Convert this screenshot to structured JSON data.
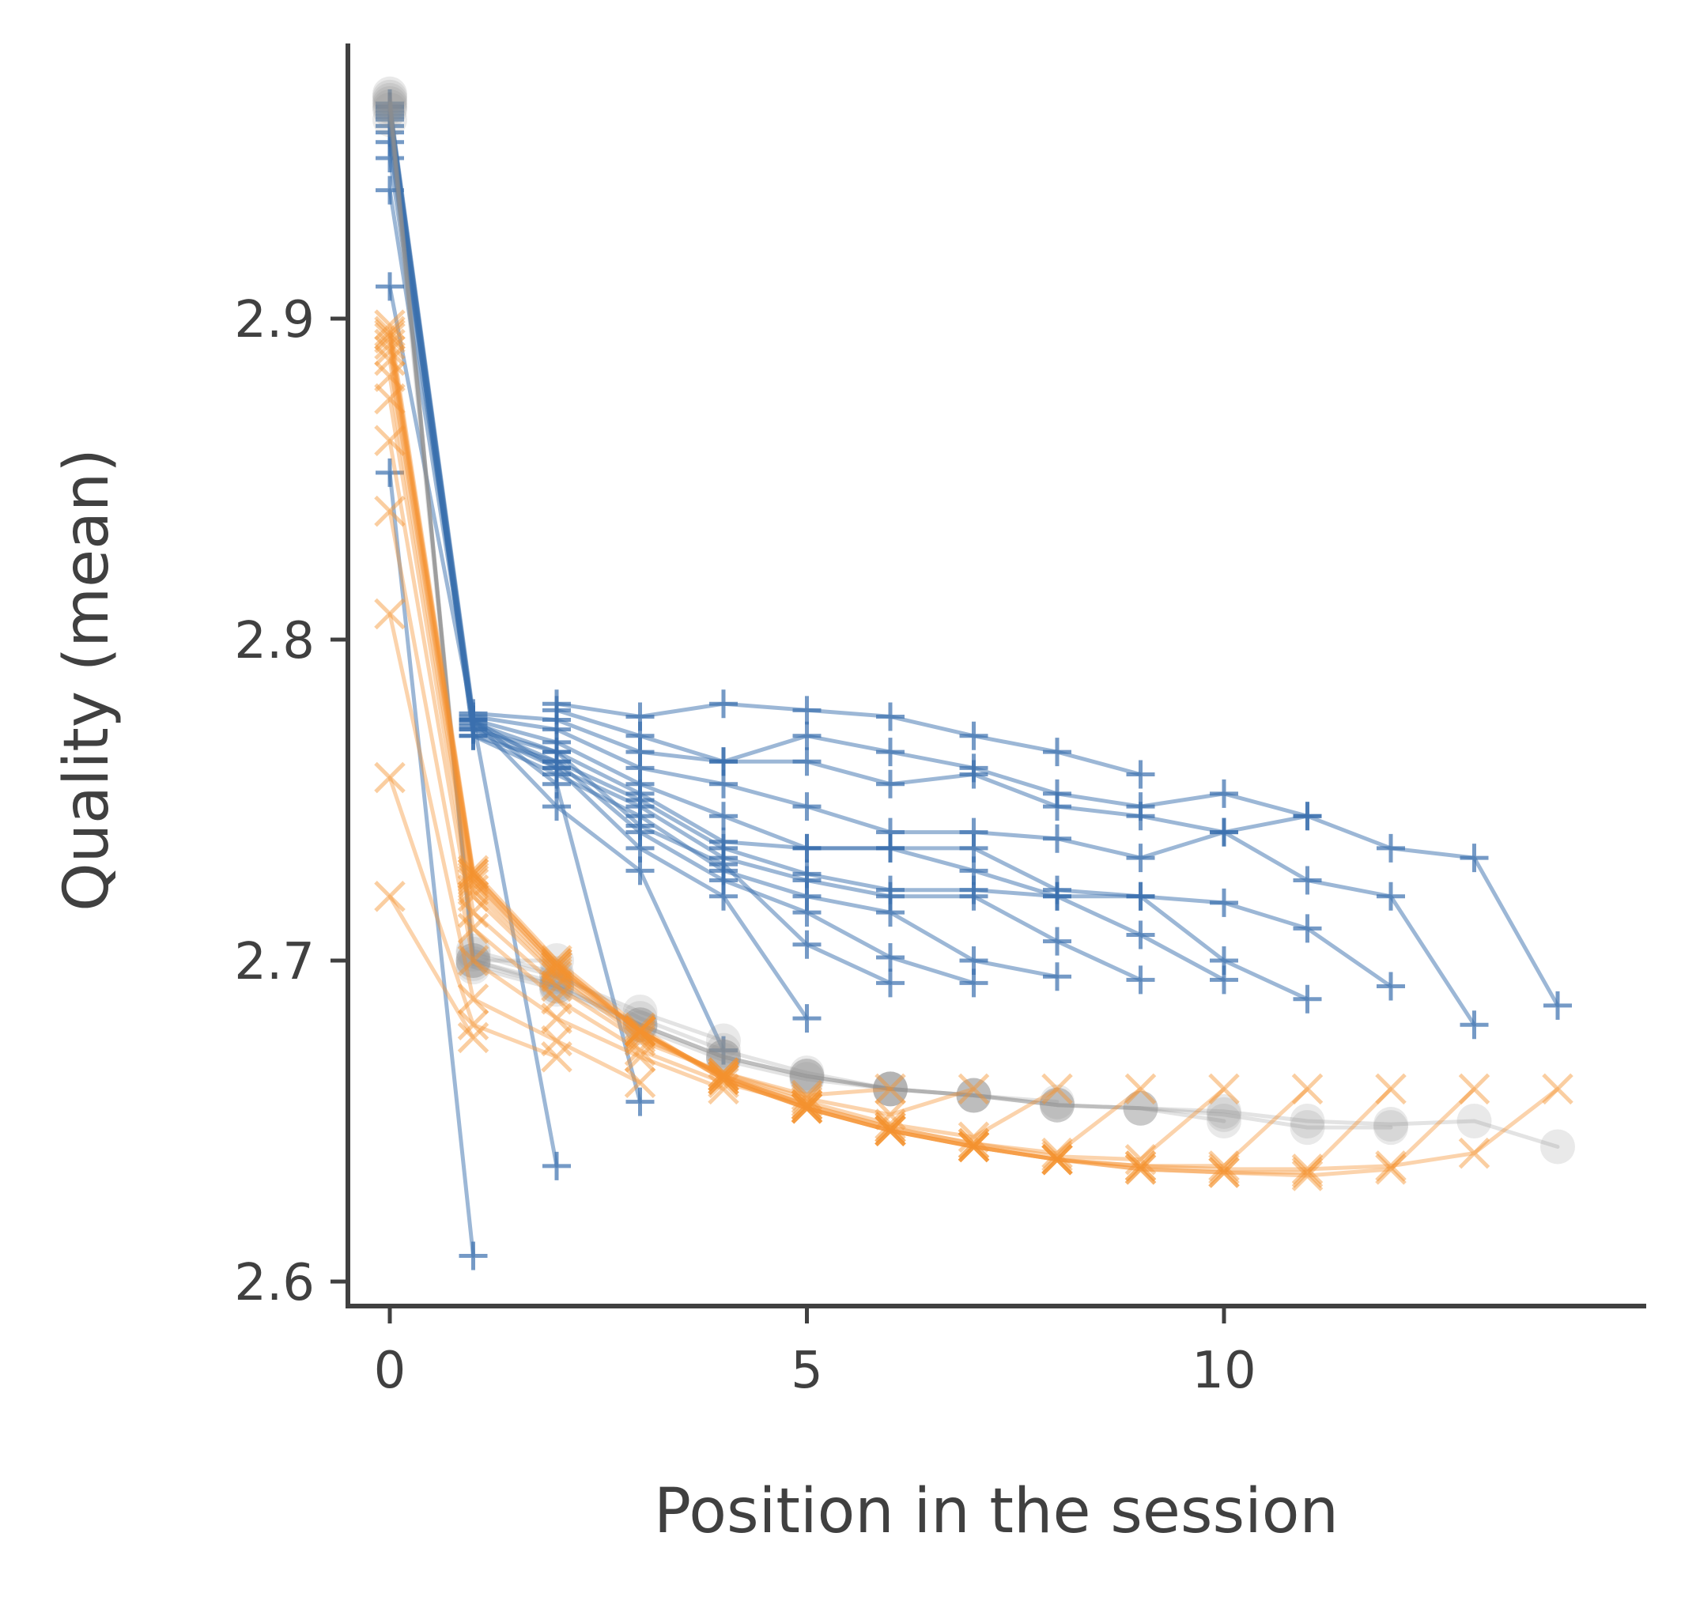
{
  "chart_data": {
    "type": "line",
    "title": "",
    "xlabel": "Position in the session",
    "ylabel": "Quality (mean)",
    "xlim": [
      -0.5,
      15.0
    ],
    "ylim": [
      2.59,
      2.985
    ],
    "xticks": [
      0,
      5,
      10
    ],
    "xtick_labels": [
      "0",
      "5",
      "10"
    ],
    "yticks": [
      2.6,
      2.7,
      2.8,
      2.9
    ],
    "ytick_labels": [
      "2.6",
      "2.7",
      "2.8",
      "2.9"
    ],
    "grid": false,
    "colors": {
      "blue": "#3a6fae",
      "orange": "#f5922f",
      "gray": "#8f8f8f",
      "axis": "#404040"
    },
    "series": [
      {
        "name": "blue-len2",
        "group": "blue",
        "marker": "plus",
        "x": [
          0,
          1
        ],
        "y": [
          2.852,
          2.608
        ]
      },
      {
        "name": "blue-len3",
        "group": "blue",
        "marker": "plus",
        "x": [
          0,
          1,
          2
        ],
        "y": [
          2.91,
          2.775,
          2.636
        ]
      },
      {
        "name": "blue-len4",
        "group": "blue",
        "marker": "plus",
        "x": [
          0,
          1,
          2,
          3
        ],
        "y": [
          2.94,
          2.775,
          2.755,
          2.656
        ]
      },
      {
        "name": "blue-len5",
        "group": "blue",
        "marker": "plus",
        "x": [
          0,
          1,
          2,
          3,
          4
        ],
        "y": [
          2.95,
          2.775,
          2.748,
          2.728,
          2.672
        ]
      },
      {
        "name": "blue-len6",
        "group": "blue",
        "marker": "plus",
        "x": [
          0,
          1,
          2,
          3,
          4,
          5
        ],
        "y": [
          2.955,
          2.775,
          2.76,
          2.735,
          2.72,
          2.682
        ]
      },
      {
        "name": "blue-len7",
        "group": "blue",
        "marker": "plus",
        "x": [
          0,
          1,
          2,
          3,
          4,
          5,
          6
        ],
        "y": [
          2.958,
          2.772,
          2.765,
          2.742,
          2.73,
          2.705,
          2.693
        ]
      },
      {
        "name": "blue-len8",
        "group": "blue",
        "marker": "plus",
        "x": [
          0,
          1,
          2,
          3,
          4,
          5,
          6,
          7
        ],
        "y": [
          2.96,
          2.77,
          2.762,
          2.74,
          2.725,
          2.715,
          2.701,
          2.693
        ]
      },
      {
        "name": "blue-len9",
        "group": "blue",
        "marker": "plus",
        "x": [
          0,
          1,
          2,
          3,
          4,
          5,
          6,
          7,
          8
        ],
        "y": [
          2.962,
          2.77,
          2.758,
          2.745,
          2.728,
          2.72,
          2.715,
          2.7,
          2.695
        ]
      },
      {
        "name": "blue-len10",
        "group": "blue",
        "marker": "plus",
        "x": [
          0,
          1,
          2,
          3,
          4,
          5,
          6,
          7,
          8,
          9
        ],
        "y": [
          2.963,
          2.772,
          2.76,
          2.748,
          2.732,
          2.725,
          2.72,
          2.72,
          2.706,
          2.694
        ]
      },
      {
        "name": "blue-len11",
        "group": "blue",
        "marker": "plus",
        "x": [
          0,
          1,
          2,
          3,
          4,
          5,
          6,
          7,
          8,
          9,
          10
        ],
        "y": [
          2.964,
          2.773,
          2.762,
          2.75,
          2.735,
          2.727,
          2.722,
          2.722,
          2.72,
          2.708,
          2.694
        ]
      },
      {
        "name": "blue-len12",
        "group": "blue",
        "marker": "plus",
        "x": [
          0,
          1,
          2,
          3,
          4,
          5,
          6,
          7,
          8,
          9,
          10,
          11
        ],
        "y": [
          2.965,
          2.774,
          2.765,
          2.752,
          2.737,
          2.735,
          2.735,
          2.728,
          2.72,
          2.72,
          2.7,
          2.688
        ]
      },
      {
        "name": "blue-len13",
        "group": "blue",
        "marker": "plus",
        "x": [
          0,
          1,
          2,
          3,
          4,
          5,
          6,
          7,
          8,
          9,
          10,
          11,
          12
        ],
        "y": [
          2.966,
          2.775,
          2.768,
          2.755,
          2.745,
          2.735,
          2.735,
          2.735,
          2.722,
          2.72,
          2.718,
          2.71,
          2.692
        ]
      },
      {
        "name": "blue-len14",
        "group": "blue",
        "marker": "plus",
        "x": [
          0,
          1,
          2,
          3,
          4,
          5,
          6,
          7,
          8,
          9,
          10,
          11,
          12,
          13
        ],
        "y": [
          2.966,
          2.776,
          2.772,
          2.76,
          2.755,
          2.748,
          2.74,
          2.74,
          2.738,
          2.732,
          2.74,
          2.725,
          2.72,
          2.68
        ]
      },
      {
        "name": "blue-len15",
        "group": "blue",
        "marker": "plus",
        "x": [
          0,
          1,
          2,
          3,
          4,
          5,
          6,
          7,
          8,
          9,
          10,
          11,
          12,
          13,
          14
        ],
        "y": [
          2.967,
          2.777,
          2.775,
          2.765,
          2.762,
          2.762,
          2.755,
          2.758,
          2.748,
          2.745,
          2.74,
          2.745,
          2.735,
          2.732,
          2.686
        ]
      },
      {
        "name": "blue-upper-a",
        "group": "blue",
        "marker": "plus",
        "x": [
          2,
          3,
          4,
          5,
          6,
          7,
          8,
          9,
          10,
          11
        ],
        "y": [
          2.778,
          2.77,
          2.762,
          2.77,
          2.765,
          2.76,
          2.752,
          2.748,
          2.752,
          2.745
        ]
      },
      {
        "name": "blue-upper-b",
        "group": "blue",
        "marker": "plus",
        "x": [
          2,
          3,
          4,
          5,
          6,
          7,
          8,
          9
        ],
        "y": [
          2.78,
          2.776,
          2.78,
          2.778,
          2.776,
          2.77,
          2.765,
          2.758
        ]
      },
      {
        "name": "orange-len2",
        "group": "orange",
        "marker": "x",
        "x": [
          0,
          1
        ],
        "y": [
          2.72,
          2.676
        ]
      },
      {
        "name": "orange-len3",
        "group": "orange",
        "marker": "x",
        "x": [
          0,
          1,
          2
        ],
        "y": [
          2.757,
          2.68,
          2.67
        ]
      },
      {
        "name": "orange-len4",
        "group": "orange",
        "marker": "x",
        "x": [
          0,
          1,
          2,
          3
        ],
        "y": [
          2.808,
          2.688,
          2.675,
          2.662
        ]
      },
      {
        "name": "orange-len5",
        "group": "orange",
        "marker": "x",
        "x": [
          0,
          1,
          2,
          3,
          4
        ],
        "y": [
          2.84,
          2.7,
          2.682,
          2.67,
          2.66
        ]
      },
      {
        "name": "orange-len6",
        "group": "orange",
        "marker": "x",
        "x": [
          0,
          1,
          2,
          3,
          4,
          5
        ],
        "y": [
          2.862,
          2.71,
          2.688,
          2.672,
          2.662,
          2.655
        ]
      },
      {
        "name": "orange-len7",
        "group": "orange",
        "marker": "x",
        "x": [
          0,
          1,
          2,
          3,
          4,
          5,
          6
        ],
        "y": [
          2.875,
          2.715,
          2.692,
          2.675,
          2.665,
          2.658,
          2.66
        ]
      },
      {
        "name": "orange-len8",
        "group": "orange",
        "marker": "x",
        "x": [
          0,
          1,
          2,
          3,
          4,
          5,
          6,
          7
        ],
        "y": [
          2.882,
          2.72,
          2.695,
          2.676,
          2.665,
          2.657,
          2.652,
          2.66
        ]
      },
      {
        "name": "orange-len9",
        "group": "orange",
        "marker": "x",
        "x": [
          0,
          1,
          2,
          3,
          4,
          5,
          6,
          7,
          8
        ],
        "y": [
          2.887,
          2.722,
          2.696,
          2.677,
          2.664,
          2.656,
          2.649,
          2.645,
          2.66
        ]
      },
      {
        "name": "orange-len10",
        "group": "orange",
        "marker": "x",
        "x": [
          0,
          1,
          2,
          3,
          4,
          5,
          6,
          7,
          8,
          9
        ],
        "y": [
          2.89,
          2.724,
          2.697,
          2.678,
          2.664,
          2.655,
          2.648,
          2.643,
          2.64,
          2.66
        ]
      },
      {
        "name": "orange-len11",
        "group": "orange",
        "marker": "x",
        "x": [
          0,
          1,
          2,
          3,
          4,
          5,
          6,
          7,
          8,
          9,
          10
        ],
        "y": [
          2.892,
          2.725,
          2.698,
          2.678,
          2.664,
          2.655,
          2.648,
          2.643,
          2.639,
          2.638,
          2.66
        ]
      },
      {
        "name": "orange-len12",
        "group": "orange",
        "marker": "x",
        "x": [
          0,
          1,
          2,
          3,
          4,
          5,
          6,
          7,
          8,
          9,
          10,
          11
        ],
        "y": [
          2.894,
          2.726,
          2.698,
          2.678,
          2.664,
          2.654,
          2.647,
          2.642,
          2.638,
          2.636,
          2.636,
          2.66
        ]
      },
      {
        "name": "orange-len13",
        "group": "orange",
        "marker": "x",
        "x": [
          0,
          1,
          2,
          3,
          4,
          5,
          6,
          7,
          8,
          9,
          10,
          11,
          12
        ],
        "y": [
          2.895,
          2.727,
          2.699,
          2.678,
          2.663,
          2.654,
          2.647,
          2.642,
          2.638,
          2.635,
          2.634,
          2.634,
          2.66
        ]
      },
      {
        "name": "orange-len14",
        "group": "orange",
        "marker": "x",
        "x": [
          0,
          1,
          2,
          3,
          4,
          5,
          6,
          7,
          8,
          9,
          10,
          11,
          12,
          13
        ],
        "y": [
          2.896,
          2.727,
          2.699,
          2.678,
          2.663,
          2.654,
          2.647,
          2.642,
          2.638,
          2.635,
          2.634,
          2.633,
          2.635,
          2.66
        ]
      },
      {
        "name": "orange-len15",
        "group": "orange",
        "marker": "x",
        "x": [
          0,
          1,
          2,
          3,
          4,
          5,
          6,
          7,
          8,
          9,
          10,
          11,
          12,
          13,
          14
        ],
        "y": [
          2.898,
          2.728,
          2.7,
          2.679,
          2.663,
          2.654,
          2.647,
          2.642,
          2.638,
          2.636,
          2.635,
          2.635,
          2.636,
          2.64,
          2.66
        ]
      },
      {
        "name": "gray-len3",
        "group": "gray",
        "marker": "circle",
        "x": [
          0,
          1,
          2
        ],
        "y": [
          2.962,
          2.7,
          2.7
        ]
      },
      {
        "name": "gray-len5",
        "group": "gray",
        "marker": "circle",
        "x": [
          0,
          1,
          2,
          3,
          4
        ],
        "y": [
          2.965,
          2.702,
          2.695,
          2.684,
          2.675
        ]
      },
      {
        "name": "gray-len7",
        "group": "gray",
        "marker": "circle",
        "x": [
          0,
          1,
          2,
          3,
          4,
          5,
          6
        ],
        "y": [
          2.966,
          2.703,
          2.696,
          2.682,
          2.672,
          2.665,
          2.66
        ]
      },
      {
        "name": "gray-len9",
        "group": "gray",
        "marker": "circle",
        "x": [
          0,
          1,
          2,
          3,
          4,
          5,
          6,
          7,
          8
        ],
        "y": [
          2.967,
          2.7,
          2.693,
          2.68,
          2.67,
          2.664,
          2.66,
          2.658,
          2.656
        ]
      },
      {
        "name": "gray-len11",
        "group": "gray",
        "marker": "circle",
        "x": [
          0,
          1,
          2,
          3,
          4,
          5,
          6,
          7,
          8,
          9,
          10
        ],
        "y": [
          2.968,
          2.7,
          2.692,
          2.68,
          2.67,
          2.664,
          2.66,
          2.658,
          2.655,
          2.654,
          2.65
        ]
      },
      {
        "name": "gray-len13",
        "group": "gray",
        "marker": "circle",
        "x": [
          0,
          1,
          2,
          3,
          4,
          5,
          6,
          7,
          8,
          9,
          10,
          11,
          12
        ],
        "y": [
          2.969,
          2.699,
          2.692,
          2.68,
          2.67,
          2.664,
          2.66,
          2.658,
          2.655,
          2.654,
          2.652,
          2.648,
          2.648
        ]
      },
      {
        "name": "gray-len15",
        "group": "gray",
        "marker": "circle",
        "x": [
          0,
          1,
          2,
          3,
          4,
          5,
          6,
          7,
          8,
          9,
          10,
          11,
          12,
          13,
          14
        ],
        "y": [
          2.97,
          2.698,
          2.691,
          2.679,
          2.669,
          2.663,
          2.66,
          2.658,
          2.655,
          2.654,
          2.653,
          2.65,
          2.649,
          2.65,
          2.642
        ]
      }
    ]
  }
}
